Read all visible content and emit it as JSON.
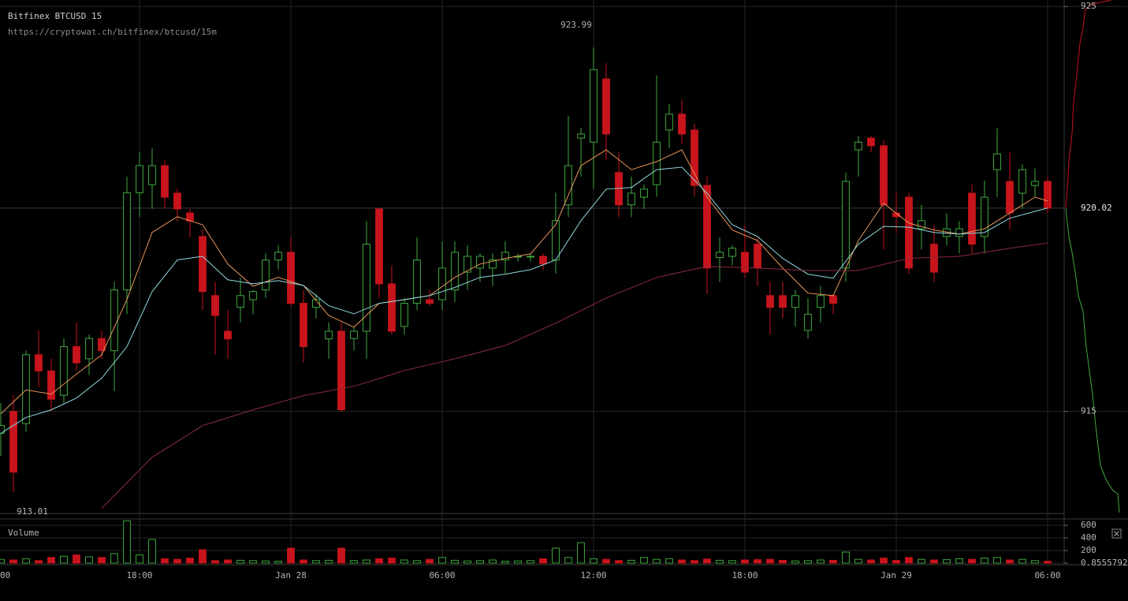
{
  "chart_data": {
    "type": "candlestick",
    "title": "Bitfinex BTCUSD 15",
    "subtitle": "https://cryptowat.ch/bitfinex/btcusd/15m",
    "up_color": "#3fa83f",
    "down_color": "#c8141c",
    "grid": true,
    "xlim": [
      -0.0625,
      84.3125
    ],
    "xticks": [
      {
        "value": -1,
        "label": "00"
      },
      {
        "value": 11,
        "label": "18:00"
      },
      {
        "value": 23,
        "label": "Jan 28"
      },
      {
        "value": 35,
        "label": "06:00"
      },
      {
        "value": 47,
        "label": "12:00"
      },
      {
        "value": 59,
        "label": "18:00"
      },
      {
        "value": 71,
        "label": "Jan 29"
      },
      {
        "value": 83,
        "label": "06:00"
      }
    ],
    "ylim": [
      912.5,
      925.16
    ],
    "yticks": [
      915,
      925
    ],
    "last_price": 920.02,
    "high_label": 923.99,
    "low_label": 913.01,
    "open": [
      914.46,
      915.0,
      914.7,
      916.4,
      916.0,
      915.4,
      916.6,
      916.3,
      916.8,
      916.5,
      918.0,
      920.4,
      920.6,
      921.07,
      920.39,
      919.9,
      919.32,
      917.86,
      916.98,
      917.57,
      917.76,
      918.0,
      918.74,
      918.93,
      917.67,
      917.57,
      916.79,
      916.98,
      916.8,
      916.98,
      920.0,
      918.15,
      917.1,
      917.67,
      917.76,
      917.76,
      918.0,
      918.44,
      918.54,
      918.54,
      918.74,
      918.83,
      918.83,
      918.83,
      918.74,
      920.1,
      921.75,
      921.65,
      923.21,
      920.9,
      920.1,
      920.29,
      920.6,
      921.95,
      922.34,
      921.95,
      920.58,
      918.8,
      918.83,
      918.93,
      919.13,
      917.86,
      917.86,
      917.57,
      917.0,
      917.57,
      917.86,
      918.54,
      921.46,
      921.75,
      921.56,
      919.9,
      920.29,
      919.51,
      919.13,
      919.32,
      919.32,
      920.39,
      919.32,
      920.97,
      920.68,
      920.39,
      920.58,
      920.68
    ],
    "high": [
      915.2,
      915.4,
      916.5,
      917.0,
      916.3,
      916.8,
      917.2,
      916.9,
      917.0,
      918.2,
      920.8,
      921.4,
      921.5,
      921.2,
      920.5,
      920.0,
      919.5,
      918.2,
      917.5,
      918.3,
      918.0,
      918.9,
      919.1,
      919.3,
      918.0,
      917.9,
      917.2,
      917.2,
      917.1,
      919.7,
      920.0,
      918.6,
      917.8,
      919.3,
      918.0,
      919.2,
      919.2,
      919.1,
      918.9,
      918.9,
      919.2,
      918.9,
      918.9,
      918.9,
      920.4,
      922.3,
      922.0,
      923.99,
      923.6,
      921.4,
      920.8,
      920.6,
      923.3,
      922.6,
      922.7,
      922.1,
      920.8,
      919.3,
      919.1,
      919.6,
      919.3,
      918.2,
      918.2,
      918.0,
      917.8,
      918.1,
      917.9,
      920.9,
      921.8,
      921.8,
      921.7,
      920.4,
      920.4,
      920.1,
      919.6,
      919.9,
      919.7,
      920.6,
      920.7,
      922.0,
      921.4,
      921.1,
      921.0,
      920.8
    ],
    "low": [
      913.9,
      913.01,
      914.5,
      915.6,
      915.0,
      915.2,
      916.0,
      915.9,
      916.3,
      915.5,
      917.4,
      919.8,
      920.0,
      920.0,
      919.7,
      919.3,
      917.5,
      916.4,
      916.3,
      917.2,
      917.4,
      917.8,
      918.5,
      917.6,
      916.2,
      917.3,
      916.3,
      915.0,
      916.5,
      916.3,
      917.8,
      916.9,
      916.9,
      917.5,
      917.6,
      917.5,
      917.7,
      918.0,
      918.2,
      918.1,
      918.4,
      918.7,
      918.7,
      918.5,
      918.4,
      919.8,
      920.8,
      920.5,
      921.2,
      919.8,
      919.8,
      920.0,
      920.3,
      921.5,
      921.6,
      920.3,
      917.9,
      918.2,
      918.6,
      918.3,
      918.1,
      916.9,
      917.3,
      917.1,
      916.8,
      917.2,
      917.4,
      918.2,
      920.8,
      921.4,
      919.0,
      919.4,
      918.4,
      919.0,
      918.2,
      919.1,
      918.9,
      918.9,
      918.9,
      920.3,
      919.5,
      920.0,
      920.3,
      919.9
    ],
    "close": [
      914.65,
      913.5,
      916.4,
      916.0,
      915.3,
      916.6,
      916.2,
      916.8,
      916.5,
      918.0,
      920.4,
      921.07,
      921.07,
      920.29,
      920.0,
      919.7,
      917.96,
      917.37,
      916.79,
      917.86,
      917.96,
      918.74,
      918.93,
      917.67,
      916.6,
      917.76,
      916.98,
      915.04,
      916.98,
      919.13,
      918.15,
      916.98,
      917.67,
      918.74,
      917.67,
      918.54,
      918.93,
      918.83,
      918.83,
      918.74,
      918.93,
      918.83,
      918.83,
      918.64,
      919.71,
      921.07,
      921.85,
      923.44,
      921.85,
      920.1,
      920.39,
      920.49,
      921.65,
      922.34,
      921.85,
      920.58,
      918.54,
      918.93,
      919.03,
      918.44,
      918.54,
      917.57,
      917.57,
      917.86,
      917.4,
      917.86,
      917.67,
      920.68,
      921.65,
      921.56,
      920.1,
      919.81,
      918.54,
      919.71,
      918.44,
      919.51,
      919.51,
      919.13,
      920.29,
      921.36,
      919.9,
      920.97,
      920.68,
      920.02
    ],
    "overlays": [
      {
        "type": "line",
        "color": "#e8955a",
        "x": [
          0,
          2,
          4,
          6,
          8,
          10,
          12,
          14,
          16,
          18,
          20,
          22,
          24,
          26,
          28,
          30,
          32,
          34,
          36,
          38,
          40,
          42,
          44,
          46,
          48,
          50,
          52,
          54,
          56,
          58,
          60,
          62,
          64,
          66,
          68,
          70,
          72,
          74,
          76,
          78,
          80,
          82,
          83
        ],
        "values": [
          914.94,
          915.53,
          915.43,
          915.92,
          916.4,
          917.76,
          919.42,
          919.81,
          919.61,
          918.64,
          918.09,
          918.31,
          918.11,
          917.37,
          917.08,
          917.67,
          917.76,
          917.86,
          918.31,
          918.64,
          918.78,
          918.89,
          919.61,
          921.07,
          921.46,
          920.97,
          921.17,
          921.46,
          920.29,
          919.48,
          919.22,
          918.54,
          917.92,
          917.86,
          919.22,
          920.14,
          919.65,
          919.48,
          919.38,
          919.51,
          919.9,
          920.29,
          920.2
        ]
      },
      {
        "type": "line",
        "color": "#8fd8e0",
        "x": [
          0,
          2,
          4,
          6,
          8,
          10,
          12,
          14,
          16,
          18,
          20,
          22,
          24,
          26,
          28,
          30,
          32,
          34,
          36,
          38,
          40,
          42,
          44,
          46,
          48,
          50,
          52,
          54,
          56,
          58,
          60,
          62,
          64,
          66,
          68,
          70,
          72,
          74,
          76,
          78,
          80,
          82,
          83
        ],
        "values": [
          914.46,
          914.85,
          915.04,
          915.33,
          915.82,
          916.6,
          917.96,
          918.74,
          918.83,
          918.25,
          918.15,
          918.23,
          918.11,
          917.61,
          917.41,
          917.67,
          917.76,
          917.86,
          918.06,
          918.31,
          918.39,
          918.5,
          918.74,
          919.71,
          920.49,
          920.53,
          920.97,
          921.03,
          920.39,
          919.61,
          919.32,
          918.78,
          918.39,
          918.29,
          919.13,
          919.57,
          919.55,
          919.42,
          919.38,
          919.42,
          919.77,
          919.94,
          920.02
        ]
      },
      {
        "type": "line",
        "color": "#8a2a3c",
        "x": [
          8,
          12,
          16,
          20,
          24,
          28,
          32,
          36,
          40,
          44,
          48,
          52,
          56,
          60,
          64,
          68,
          72,
          76,
          80,
          83
        ],
        "values": [
          912.61,
          913.87,
          914.65,
          915.04,
          915.39,
          915.62,
          916.01,
          916.3,
          916.63,
          917.18,
          917.8,
          918.31,
          918.58,
          918.54,
          918.48,
          918.48,
          918.78,
          918.83,
          919.03,
          919.16
        ]
      }
    ],
    "volume": {
      "label": "Volume",
      "ylim": [
        -12.5,
        675
      ],
      "yticks": [
        0.8555792,
        200,
        400,
        600
      ],
      "values": [
        60,
        50,
        70,
        40,
        90,
        110,
        130,
        100,
        90,
        150,
        670,
        130,
        375,
        70,
        60,
        80,
        212,
        40,
        50,
        45,
        40,
        35,
        30,
        237,
        50,
        40,
        45,
        237,
        40,
        50,
        70,
        80,
        50,
        40,
        60,
        90,
        45,
        35,
        40,
        50,
        30,
        35,
        40,
        70,
        237,
        90,
        325,
        70,
        60,
        40,
        45,
        90,
        60,
        70,
        50,
        40,
        65,
        45,
        40,
        50,
        55,
        60,
        45,
        35,
        40,
        50,
        45,
        175,
        60,
        50,
        80,
        45,
        90,
        60,
        50,
        55,
        70,
        60,
        80,
        90,
        50,
        60,
        40,
        30
      ]
    }
  }
}
